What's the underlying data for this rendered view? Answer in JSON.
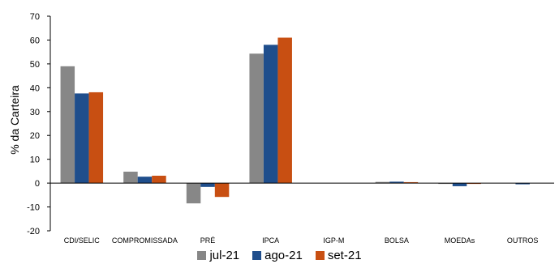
{
  "chart_data": {
    "type": "bar",
    "title": "",
    "xlabel": "",
    "ylabel": "% da Carteira",
    "ylim": [
      -20,
      70
    ],
    "yticks": [
      70,
      60,
      50,
      40,
      30,
      20,
      10,
      0,
      -10,
      -20
    ],
    "grid": false,
    "legend_position": "bottom",
    "categories": [
      "CDI/SELIC",
      "COMPROMISSADA",
      "PRÉ",
      "IPCA",
      "IGP-M",
      "BOLSA",
      "MOEDAs",
      "OUTROS"
    ],
    "series": [
      {
        "name": "jul-21",
        "color": "#878787",
        "values": [
          49,
          4.8,
          -8.5,
          54.3,
          0,
          0.5,
          -0.3,
          0
        ]
      },
      {
        "name": "ago-21",
        "color": "#1f4e8c",
        "values": [
          37.6,
          2.7,
          -1.6,
          58,
          0,
          0.6,
          -1.3,
          -0.5
        ]
      },
      {
        "name": "set-21",
        "color": "#c84f12",
        "values": [
          38.1,
          3.1,
          -5.8,
          61,
          0,
          0.4,
          -0.3,
          0
        ]
      }
    ]
  }
}
